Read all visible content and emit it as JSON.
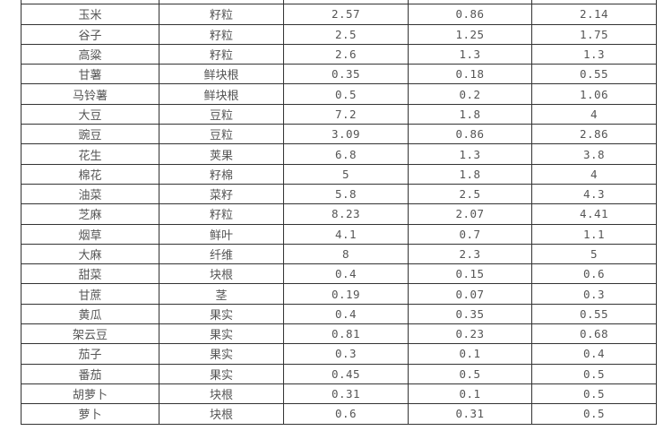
{
  "rows": [
    [
      "玉米",
      "籽粒",
      "2.57",
      "0.86",
      "2.14"
    ],
    [
      "谷子",
      "籽粒",
      "2.5",
      "1.25",
      "1.75"
    ],
    [
      "高粱",
      "籽粒",
      "2.6",
      "1.3",
      "1.3"
    ],
    [
      "甘薯",
      "鲜块根",
      "0.35",
      "0.18",
      "0.55"
    ],
    [
      "马铃薯",
      "鲜块根",
      "0.5",
      "0.2",
      "1.06"
    ],
    [
      "大豆",
      "豆粒",
      "7.2",
      "1.8",
      "4"
    ],
    [
      "豌豆",
      "豆粒",
      "3.09",
      "0.86",
      "2.86"
    ],
    [
      "花生",
      "荚果",
      "6.8",
      "1.3",
      "3.8"
    ],
    [
      "棉花",
      "籽棉",
      "5",
      "1.8",
      "4"
    ],
    [
      "油菜",
      "菜籽",
      "5.8",
      "2.5",
      "4.3"
    ],
    [
      "芝麻",
      "籽粒",
      "8.23",
      "2.07",
      "4.41"
    ],
    [
      "烟草",
      "鲜叶",
      "4.1",
      "0.7",
      "1.1"
    ],
    [
      "大麻",
      "纤维",
      "8",
      "2.3",
      "5"
    ],
    [
      "甜菜",
      "块根",
      "0.4",
      "0.15",
      "0.6"
    ],
    [
      "甘蔗",
      "茎",
      "0.19",
      "0.07",
      "0.3"
    ],
    [
      "黄瓜",
      "果实",
      "0.4",
      "0.35",
      "0.55"
    ],
    [
      "架云豆",
      "果实",
      "0.81",
      "0.23",
      "0.68"
    ],
    [
      "茄子",
      "果实",
      "0.3",
      "0.1",
      "0.4"
    ],
    [
      "番茄",
      "果实",
      "0.45",
      "0.5",
      "0.5"
    ],
    [
      "胡萝卜",
      "块根",
      "0.31",
      "0.1",
      "0.5"
    ],
    [
      "萝卜",
      "块根",
      "0.6",
      "0.31",
      "0.5"
    ]
  ]
}
